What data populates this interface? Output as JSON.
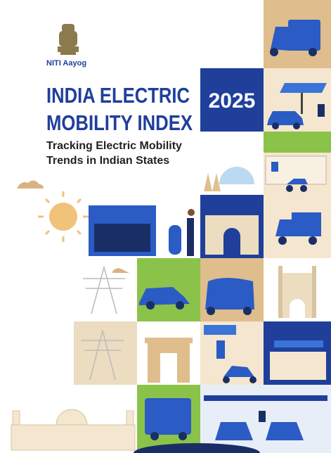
{
  "header": {
    "organization": "NITI Aayog"
  },
  "title": {
    "lines": [
      "INDIA ELECTRIC",
      "MOBILITY INDEX"
    ],
    "year": "2025"
  },
  "subtitle": {
    "lines": [
      "Tracking Electric Mobility",
      "Trends in Indian States"
    ]
  }
}
